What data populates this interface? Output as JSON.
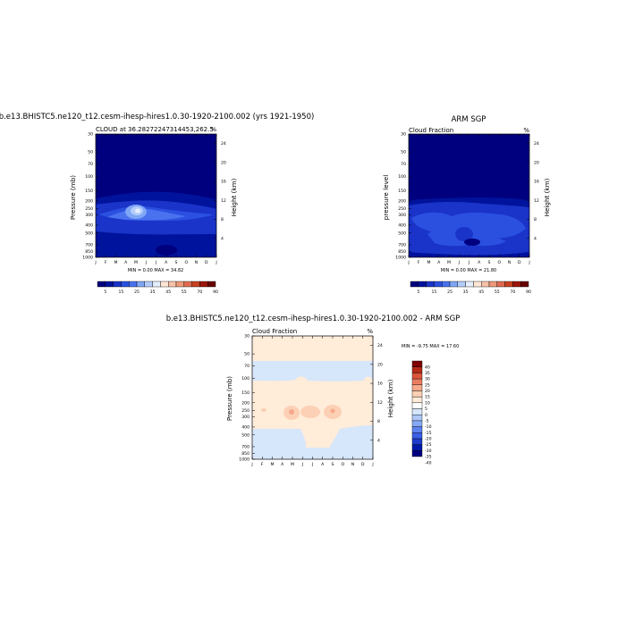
{
  "colors": {
    "model_obs_scale": [
      "#00007f",
      "#00139c",
      "#1a33c8",
      "#2b50e0",
      "#4a72ef",
      "#7fa6f5",
      "#b3ccfa",
      "#e6efff",
      "#ffe6d5",
      "#f8c2a8",
      "#ef9a7a",
      "#e06a50",
      "#c8401f",
      "#9c1508",
      "#6a0000"
    ],
    "diff_scale": [
      "#00007f",
      "#001aa8",
      "#1e3ccc",
      "#3a5ee6",
      "#5d82f0",
      "#86a9f5",
      "#aec9f8",
      "#d6e6fb",
      "#ffffff",
      "#ffecd9",
      "#fcd0b5",
      "#f5a98a",
      "#eb7d5f",
      "#d9553b",
      "#b52a15",
      "#7e0000"
    ]
  },
  "chart_data": [
    {
      "type": "heatmap",
      "title": "b.e13.BHISTC5.ne120_t12.cesm-ihesp-hires1.0.30-1920-2100.002 (yrs 1921-1950)",
      "subtitle_left": "CLOUD at 36.28272247314453,262.5",
      "subtitle_right": "%",
      "ylabel": "Pressure (mb)",
      "y2label": "Height (km)",
      "x_ticks": [
        "J",
        "F",
        "M",
        "A",
        "M",
        "J",
        "J",
        "A",
        "S",
        "O",
        "N",
        "D",
        "J"
      ],
      "y_ticks": [
        "30",
        "50",
        "70",
        "100",
        "150",
        "200",
        "250",
        "300",
        "400",
        "500",
        "700",
        "850",
        "1000"
      ],
      "y2_ticks": [
        "24",
        "20",
        "16",
        "12",
        "8",
        "4"
      ],
      "minmax": "MIN =   0.00 MAX =  34.82",
      "colorbar_labels": [
        "5",
        "15",
        "25",
        "35",
        "45",
        "55",
        "70",
        "90"
      ]
    },
    {
      "type": "heatmap",
      "title": "ARM SGP",
      "subtitle_left": "Cloud Fraction",
      "subtitle_right": "%",
      "ylabel": "pressure level",
      "y2label": "Height (km)",
      "x_ticks": [
        "J",
        "F",
        "M",
        "A",
        "M",
        "J",
        "J",
        "A",
        "S",
        "O",
        "N",
        "D",
        "J"
      ],
      "y_ticks": [
        "30",
        "50",
        "70",
        "100",
        "150",
        "200",
        "250",
        "300",
        "400",
        "500",
        "700",
        "850",
        "1000"
      ],
      "y2_ticks": [
        "24",
        "20",
        "16",
        "12",
        "8",
        "4"
      ],
      "minmax": "MIN =   0.00 MAX =  21.80",
      "colorbar_labels": [
        "5",
        "15",
        "25",
        "35",
        "45",
        "55",
        "70",
        "90"
      ]
    },
    {
      "type": "heatmap",
      "title": "b.e13.BHISTC5.ne120_t12.cesm-ihesp-hires1.0.30-1920-2100.002 - ARM SGP",
      "subtitle_left": "Cloud Fraction",
      "subtitle_right": "%",
      "ylabel": "Pressure (mb)",
      "y2label": "Height (km)",
      "x_ticks": [
        "J",
        "F",
        "M",
        "A",
        "M",
        "J",
        "J",
        "A",
        "S",
        "O",
        "N",
        "D",
        "J"
      ],
      "y_ticks": [
        "30",
        "50",
        "70",
        "100",
        "150",
        "200",
        "250",
        "300",
        "400",
        "500",
        "700",
        "850",
        "1000"
      ],
      "y2_ticks": [
        "24",
        "20",
        "16",
        "12",
        "8",
        "4"
      ],
      "minmax": "MIN =  -9.75 MAX =  17.60",
      "colorbar_labels": [
        "40",
        "35",
        "30",
        "25",
        "20",
        "15",
        "10",
        "5",
        "0",
        "-5",
        "-10",
        "-15",
        "-20",
        "-25",
        "-30",
        "-35",
        "-40"
      ]
    }
  ]
}
